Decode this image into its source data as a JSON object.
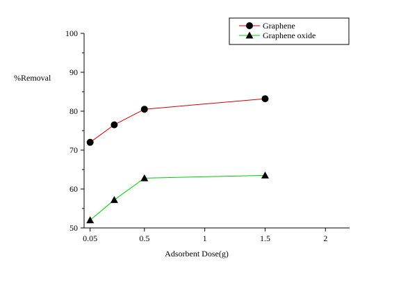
{
  "chart_data": {
    "type": "line",
    "title": "",
    "xlabel": "Adsorbent Dose(g)",
    "ylabel": "%Removal",
    "xlim": [
      0,
      2.2
    ],
    "ylim": [
      50,
      100
    ],
    "x_ticks": [
      {
        "value": 0.05,
        "label": "0.05"
      },
      {
        "value": 0.5,
        "label": "0.5"
      },
      {
        "value": 1,
        "label": "1"
      },
      {
        "value": 1.5,
        "label": "1.5"
      },
      {
        "value": 2,
        "label": "2"
      }
    ],
    "y_ticks": [
      50,
      60,
      70,
      80,
      90,
      100
    ],
    "grid": false,
    "legend_position": "top-right",
    "series": [
      {
        "name": "Graphene",
        "color": "#cc0000",
        "marker": "circle",
        "x": [
          0.05,
          0.25,
          0.5,
          1.5
        ],
        "y": [
          72,
          76.5,
          80.5,
          83.2
        ]
      },
      {
        "name": "Graphene oxide",
        "color": "#00cc00",
        "marker": "triangle",
        "x": [
          0.05,
          0.25,
          0.5,
          1.5
        ],
        "y": [
          52,
          57.2,
          62.8,
          63.5
        ]
      }
    ]
  }
}
